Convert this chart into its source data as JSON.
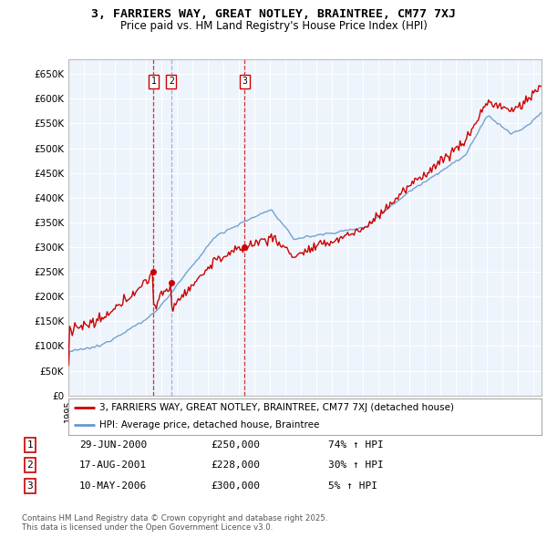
{
  "title": "3, FARRIERS WAY, GREAT NOTLEY, BRAINTREE, CM77 7XJ",
  "subtitle": "Price paid vs. HM Land Registry's House Price Index (HPI)",
  "ylim": [
    0,
    680000
  ],
  "yticks": [
    0,
    50000,
    100000,
    150000,
    200000,
    250000,
    300000,
    350000,
    400000,
    450000,
    500000,
    550000,
    600000,
    650000
  ],
  "ytick_labels": [
    "£0",
    "£50K",
    "£100K",
    "£150K",
    "£200K",
    "£250K",
    "£300K",
    "£350K",
    "£400K",
    "£450K",
    "£500K",
    "£550K",
    "£600K",
    "£650K"
  ],
  "xlim_start": 1995.0,
  "xlim_end": 2025.5,
  "sale_dates": [
    2000.49,
    2001.63,
    2006.36
  ],
  "sale_prices": [
    250000,
    228000,
    300000
  ],
  "sale_labels": [
    "1",
    "2",
    "3"
  ],
  "sale_vline_colors": [
    "#cc0000",
    "#9999cc",
    "#cc0000"
  ],
  "property_color": "#cc0000",
  "hpi_color": "#6699cc",
  "legend_property": "3, FARRIERS WAY, GREAT NOTLEY, BRAINTREE, CM77 7XJ (detached house)",
  "legend_hpi": "HPI: Average price, detached house, Braintree",
  "table_data": [
    [
      "1",
      "29-JUN-2000",
      "£250,000",
      "74% ↑ HPI"
    ],
    [
      "2",
      "17-AUG-2001",
      "£228,000",
      "30% ↑ HPI"
    ],
    [
      "3",
      "10-MAY-2006",
      "£300,000",
      "5% ↑ HPI"
    ]
  ],
  "footnote": "Contains HM Land Registry data © Crown copyright and database right 2025.\nThis data is licensed under the Open Government Licence v3.0.",
  "background_color": "#ffffff",
  "plot_bg_color": "#eef4fb",
  "grid_color": "#ffffff"
}
